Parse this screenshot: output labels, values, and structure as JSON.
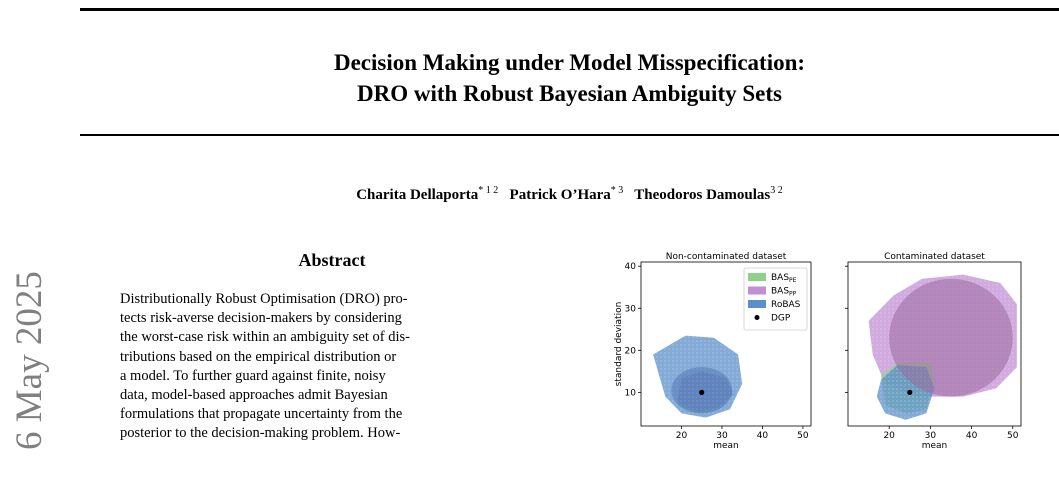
{
  "paper": {
    "title_line1": "Decision Making under Model Misspecification:",
    "title_line2": "DRO with Robust Bayesian Ambiguity Sets",
    "authors": [
      {
        "name": "Charita Dellaporta",
        "affil": "* 1 2"
      },
      {
        "name": "Patrick O’Hara",
        "affil": "* 3"
      },
      {
        "name": "Theodoros Damoulas",
        "affil": "3 2"
      }
    ],
    "arxiv_side": "6 May 2025",
    "abstract_heading": "Abstract",
    "abstract_lines": [
      "Distributionally Robust Optimisation (DRO) pro-",
      "tects risk-averse decision-makers by considering",
      "the worst-case risk within an ambiguity set of dis-",
      "tributions based on the empirical distribution or",
      "a model. To further guard against finite, noisy",
      "data, model-based approaches admit Bayesian",
      "formulations that propagate uncertainty from the",
      "posterior to the decision-making problem. How-"
    ]
  },
  "chart_data": [
    {
      "type": "scatter",
      "title": "Non-contaminated dataset",
      "xlabel": "mean",
      "ylabel": "standard deviation",
      "xlim": [
        10,
        52
      ],
      "ylim": [
        2,
        41
      ],
      "xticks": [
        20,
        30,
        40,
        50
      ],
      "yticks": [
        10,
        20,
        30,
        40
      ],
      "legend": {
        "position": "top-right",
        "entries": [
          "BAS_PE",
          "BAS_PP",
          "RoBAS",
          "DGP"
        ]
      },
      "regions": [
        {
          "name": "BAS_PE",
          "color": "#8fd18b",
          "polygon": [
            [
              19,
              7
            ],
            [
              24,
              5
            ],
            [
              29,
              6
            ],
            [
              32,
              9
            ],
            [
              31,
              13
            ],
            [
              25,
              15
            ],
            [
              20,
              13
            ]
          ]
        },
        {
          "name": "BAS_PP",
          "color": "#c28fd4",
          "polygon": [
            [
              19,
              8
            ],
            [
              24,
              5.5
            ],
            [
              29,
              6.5
            ],
            [
              33,
              9.5
            ],
            [
              31,
              13.5
            ],
            [
              25,
              15
            ],
            [
              20,
              13.5
            ]
          ]
        },
        {
          "name": "RoBAS",
          "color": "#5b8fc9",
          "polygon": [
            [
              13,
              19
            ],
            [
              21,
              23.5
            ],
            [
              28,
              23
            ],
            [
              34,
              19
            ],
            [
              35,
              12
            ],
            [
              32,
              6
            ],
            [
              26,
              4
            ],
            [
              20,
              5
            ],
            [
              16,
              9
            ]
          ]
        }
      ],
      "dgp": {
        "x": 25,
        "y": 10
      }
    },
    {
      "type": "scatter",
      "title": "Contaminated dataset",
      "xlabel": "mean",
      "ylabel": "",
      "xlim": [
        10,
        52
      ],
      "ylim": [
        2,
        41
      ],
      "xticks": [
        20,
        30,
        40,
        50
      ],
      "yticks": [
        10,
        20,
        30,
        40
      ],
      "regions": [
        {
          "name": "BAS_PP",
          "color": "#c28fd4",
          "polygon": [
            [
              15,
              27
            ],
            [
              21,
              33
            ],
            [
              28,
              37
            ],
            [
              38,
              38
            ],
            [
              47,
              36
            ],
            [
              51,
              31
            ],
            [
              51,
              16
            ],
            [
              46,
              11
            ],
            [
              38,
              9
            ],
            [
              27,
              9
            ],
            [
              19,
              12
            ],
            [
              16,
              19
            ]
          ]
        },
        {
          "name": "BAS_PE",
          "color": "#8fd18b",
          "polygon": [
            [
              18,
              14
            ],
            [
              22,
              17
            ],
            [
              30,
              17
            ],
            [
              31,
              13
            ],
            [
              29,
              6
            ],
            [
              24,
              5
            ],
            [
              19,
              7
            ]
          ]
        },
        {
          "name": "RoBAS",
          "color": "#5b8fc9",
          "polygon": [
            [
              18,
              13
            ],
            [
              22,
              16.5
            ],
            [
              29,
              16
            ],
            [
              31,
              11
            ],
            [
              29,
              5
            ],
            [
              24,
              3.5
            ],
            [
              19,
              5
            ],
            [
              17,
              9
            ]
          ]
        }
      ],
      "dgp": {
        "x": 25,
        "y": 10
      }
    }
  ]
}
